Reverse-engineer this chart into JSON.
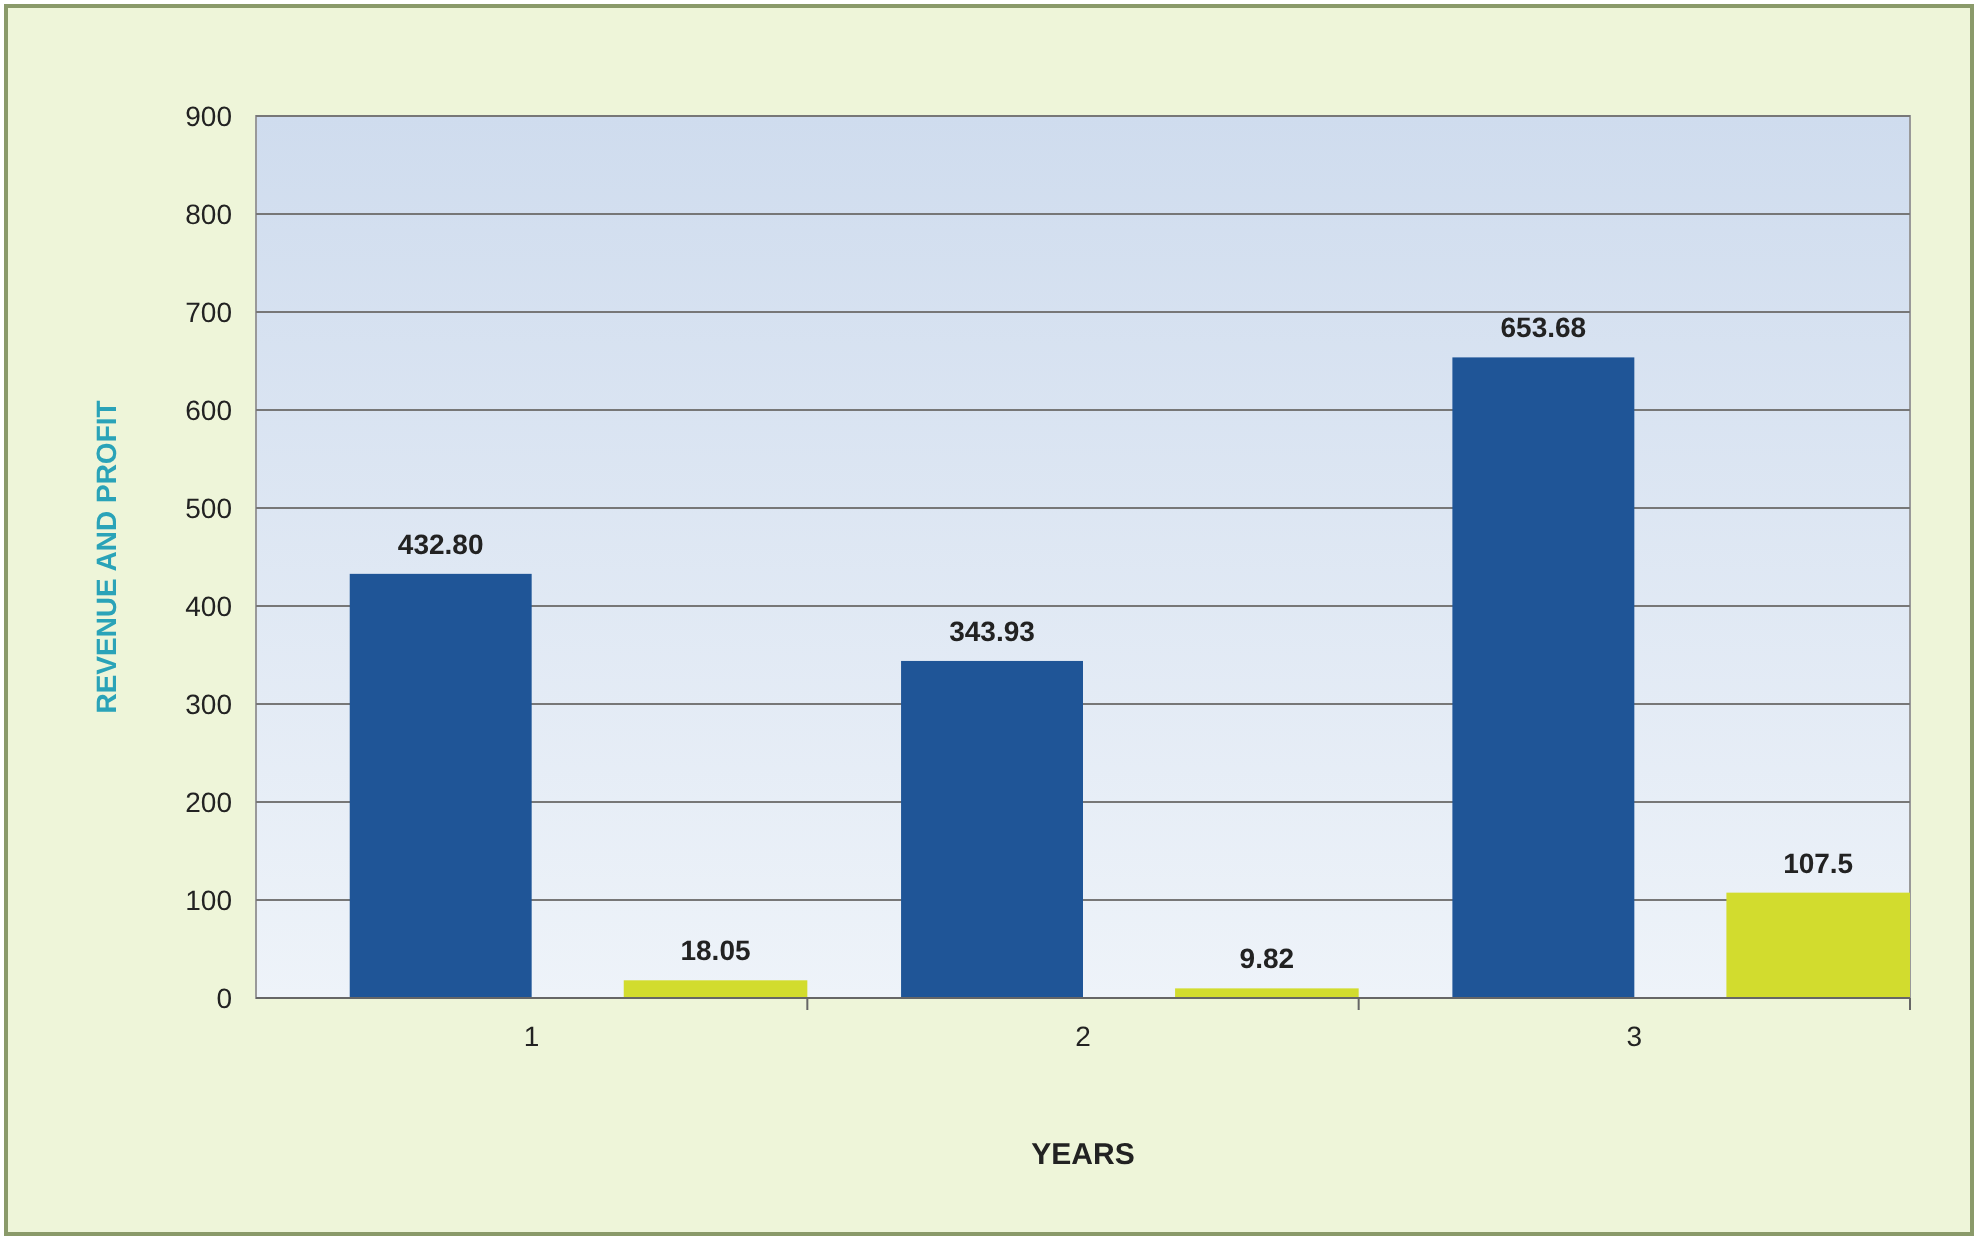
{
  "chart_data": {
    "type": "bar",
    "xlabel": "YEARS",
    "ylabel": "REVENUE AND PROFIT",
    "categories": [
      "1",
      "2",
      "3"
    ],
    "series": [
      {
        "color": "#1f5597",
        "values": [
          432.8,
          343.93,
          653.68
        ],
        "value_labels": [
          "432.80",
          "343.93",
          "653.68"
        ]
      },
      {
        "color": "#d2dc2e",
        "values": [
          18.05,
          9.82,
          107.5
        ],
        "value_labels": [
          "18.05",
          "9.82",
          "107.5"
        ]
      }
    ],
    "ylim": [
      0,
      900
    ],
    "yticks": [
      0,
      100,
      200,
      300,
      400,
      500,
      600,
      700,
      800,
      900
    ],
    "grid": "y"
  }
}
